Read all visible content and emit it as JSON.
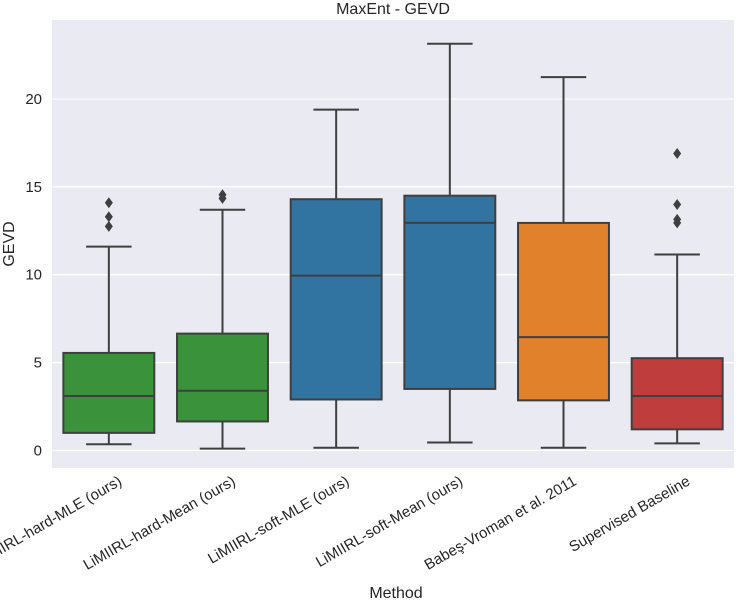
{
  "chart_data": {
    "type": "box",
    "title": "MaxEnt - GEVD",
    "xlabel": "Method",
    "ylabel": "GEVD",
    "ylim": [
      -1.0,
      24.5
    ],
    "yticks": [
      0,
      5,
      10,
      15,
      20
    ],
    "grid": true,
    "series": [
      {
        "name": "LiMIIRL-hard-MLE (ours)",
        "color": "#3a923a",
        "min": 0.35,
        "q1": 1.0,
        "median": 3.1,
        "q3": 5.55,
        "max": 11.6,
        "outliers": [
          12.75,
          13.3,
          14.1
        ]
      },
      {
        "name": "LiMIIRL-hard-Mean (ours)",
        "color": "#3a923a",
        "min": 0.1,
        "q1": 1.65,
        "median": 3.4,
        "q3": 6.65,
        "max": 13.7,
        "outliers": [
          14.35,
          14.55
        ]
      },
      {
        "name": "LiMIIRL-soft-MLE (ours)",
        "color": "#3274a1",
        "min": 0.15,
        "q1": 2.9,
        "median": 9.95,
        "q3": 14.3,
        "max": 19.4,
        "outliers": []
      },
      {
        "name": "LiMIIRL-soft-Mean (ours)",
        "color": "#3274a1",
        "min": 0.45,
        "q1": 3.5,
        "median": 12.95,
        "q3": 14.5,
        "max": 23.15,
        "outliers": []
      },
      {
        "name": "Babeş-Vroman et al. 2011",
        "color": "#e1812c",
        "min": 0.15,
        "q1": 2.85,
        "median": 6.45,
        "q3": 12.95,
        "max": 21.25,
        "outliers": []
      },
      {
        "name": "Supervised Baseline",
        "color": "#c03d3e",
        "min": 0.4,
        "q1": 1.2,
        "median": 3.1,
        "q3": 5.25,
        "max": 11.15,
        "outliers": [
          12.95,
          13.15,
          14.0,
          16.9
        ]
      }
    ]
  }
}
